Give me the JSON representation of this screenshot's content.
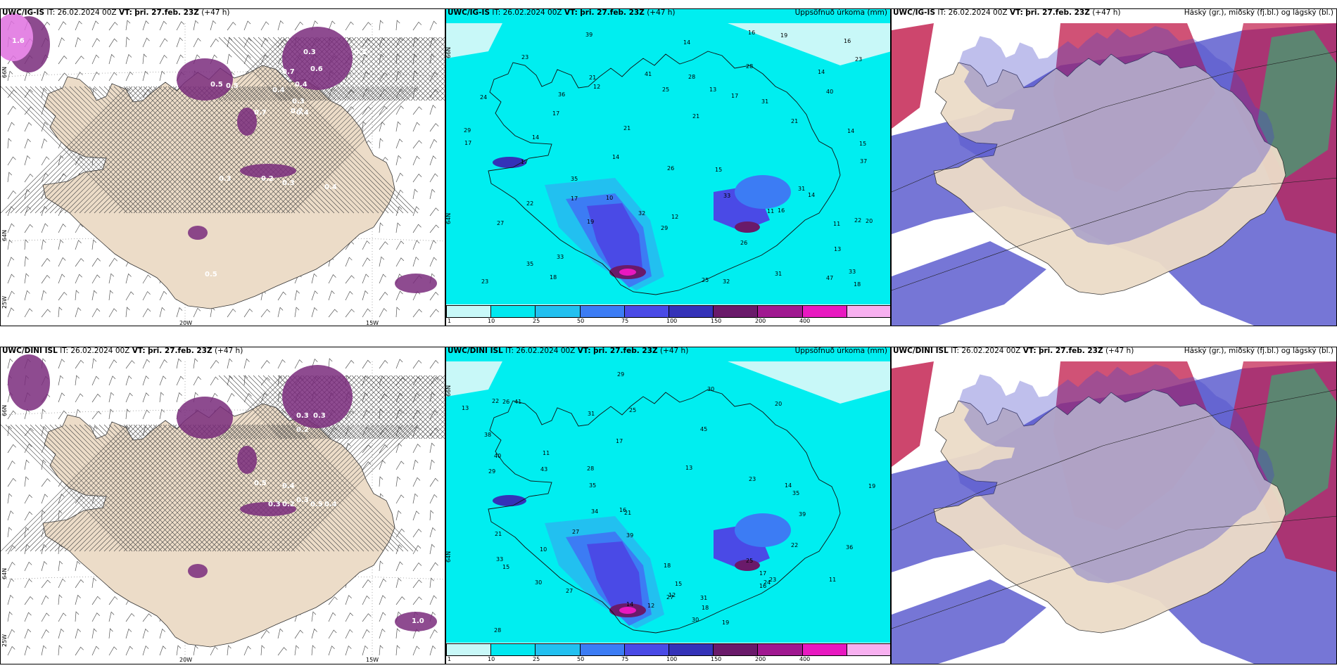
{
  "rows": [
    {
      "model": "UWC/IG-IS",
      "panels": [
        {
          "header_model": "UWC/IG-IS",
          "header_rest": "IT: 26.02.2024 00Z",
          "header_vt_label": "VT:",
          "header_vt": "þri. 27.feb. 23Z",
          "header_lead": "(+47 h)",
          "right_title": "",
          "precip_labels": [
            "1.6",
            "0.3",
            "0.3",
            "0.6",
            "0.5",
            "0.4",
            "0.7",
            "0.4",
            "0.3",
            "0.2",
            "0.5",
            "0.7",
            "0.4",
            "0.3",
            "0.2",
            "0.3",
            "0.4",
            "0.5"
          ]
        },
        {
          "header_model": "UWC/IG-IS",
          "header_rest": "IT: 26.02.2024 00Z",
          "header_vt_label": "VT:",
          "header_vt": "þri. 27.feb. 23Z",
          "header_lead": "(+47 h)",
          "right_title": "Uppsöfnuð úrkoma (mm)",
          "point_values": [
            "12",
            "14",
            "17",
            "15",
            "14",
            "22",
            "10",
            "16",
            "11",
            "14",
            "17",
            "14",
            "21",
            "19",
            "27",
            "26",
            "35",
            "29",
            "39",
            "41",
            "33",
            "28",
            "35",
            "22",
            "21",
            "19",
            "23",
            "26",
            "25",
            "23",
            "18",
            "18",
            "17",
            "14",
            "14",
            "17",
            "37",
            "33",
            "40",
            "31",
            "32",
            "24",
            "32",
            "12",
            "13",
            "23",
            "13",
            "31",
            "21",
            "33",
            "47",
            "36",
            "31",
            "28",
            "17",
            "29",
            "25",
            "11",
            "16",
            "15",
            "20",
            "16",
            "21"
          ]
        },
        {
          "header_model": "UWC/IG-IS",
          "header_rest": "IT: 26.02.2024 00Z",
          "header_vt_label": "VT:",
          "header_vt": "þri. 27.feb. 23Z",
          "header_lead": "(+47 h)",
          "right_title": "Háský (gr.), miðský (fj.bl.) og lágský (bl.)"
        }
      ]
    },
    {
      "model": "UWC/DINI ISL",
      "panels": [
        {
          "header_model": "UWC/DINI ISL",
          "header_rest": "IT: 26.02.2024 00Z",
          "header_vt_label": "VT:",
          "header_vt": "þri. 27.feb. 23Z",
          "header_lead": "(+47 h)",
          "right_title": "",
          "precip_labels": [
            "0.3",
            "0.3",
            "0.2",
            "0.4",
            "0.5",
            "0.3",
            "0.2",
            "0.3",
            "0.5",
            "0.4",
            "1.0"
          ]
        },
        {
          "header_model": "UWC/DINI ISL",
          "header_rest": "IT: 26.02.2024 00Z",
          "header_vt_label": "VT:",
          "header_vt": "þri. 27.feb. 23Z",
          "header_lead": "(+47 h)",
          "right_title": "Uppsöfnuð úrkoma (mm)",
          "point_values": [
            "14",
            "15",
            "13",
            "13",
            "19",
            "15",
            "12",
            "21",
            "14",
            "11",
            "10",
            "11",
            "12",
            "19",
            "20",
            "18",
            "17",
            "24",
            "36",
            "35",
            "41",
            "39",
            "43",
            "35",
            "31",
            "27",
            "30",
            "30",
            "31",
            "28",
            "22",
            "25",
            "22",
            "18",
            "16",
            "17",
            "26",
            "23",
            "21",
            "27",
            "28",
            "30",
            "34",
            "33",
            "29",
            "45",
            "40",
            "39",
            "29",
            "25",
            "27",
            "38",
            "16",
            "23"
          ]
        },
        {
          "header_model": "UWC/DINI ISL",
          "header_rest": "IT: 26.02.2024 00Z",
          "header_vt_label": "VT:",
          "header_vt": "þri. 27.feb. 23Z",
          "header_lead": "(+47 h)",
          "right_title": "Háský (gr.), miðský (fj.bl.) og lágský (bl.)"
        }
      ]
    }
  ],
  "axes": {
    "lon_labels": [
      "20W",
      "15W"
    ],
    "lat_labels": [
      "66N",
      "64N"
    ],
    "left_lon": "25W"
  },
  "colorbar": {
    "labels": [
      "1",
      "10",
      "25",
      "50",
      "75",
      "100",
      "150",
      "200",
      "400"
    ],
    "colors": [
      "#c8f8f8",
      "#00e8f0",
      "#22c0f0",
      "#3c7cf4",
      "#4a4ae6",
      "#3432b8",
      "#6a1a6a",
      "#a01890",
      "#e818c0",
      "#f8b0f0"
    ]
  },
  "colors": {
    "land": "#ecdcc8",
    "sea_precip": "#00eef0",
    "precip_purple": "#7a2c7c",
    "high_cloud": "#3aa870",
    "mid_cloud": "#c01848",
    "low_cloud": "#4848c8"
  }
}
